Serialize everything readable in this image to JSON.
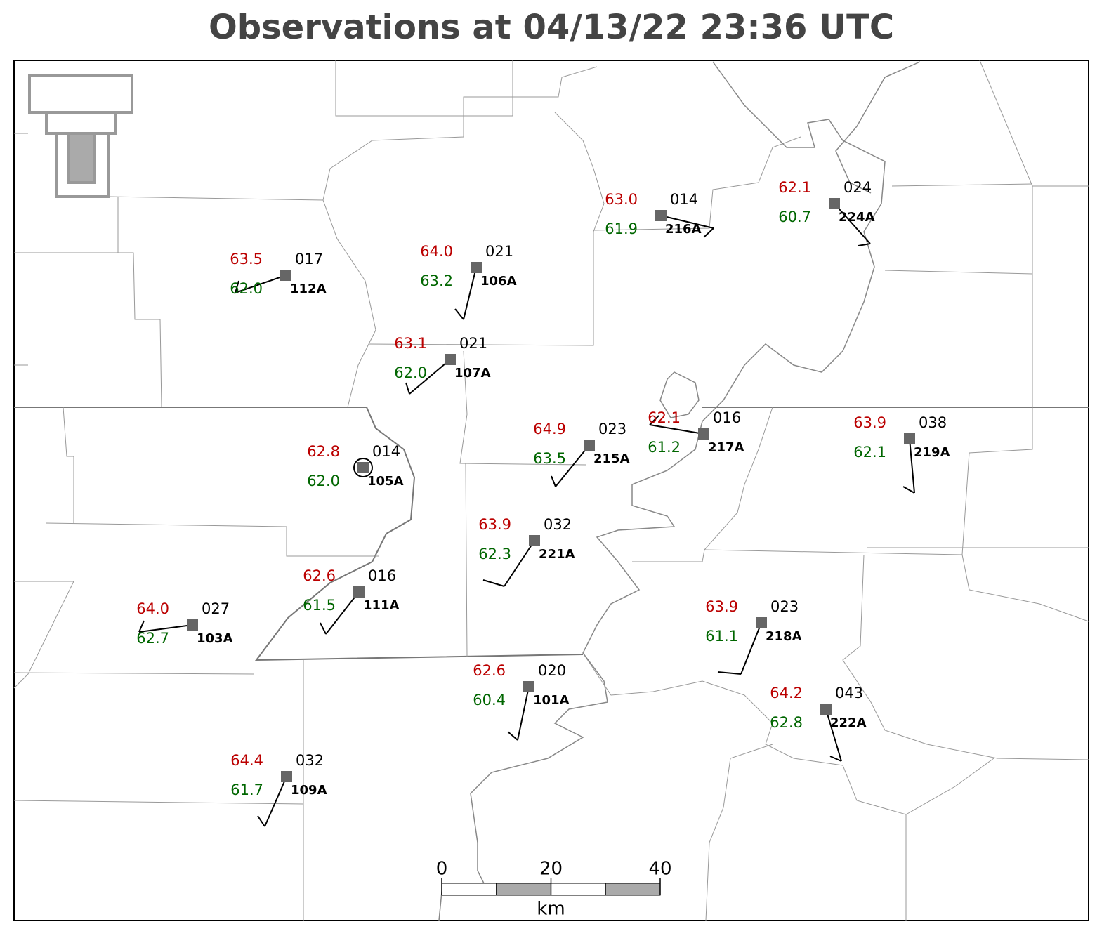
{
  "title": "Observations at 04/13/22 23:36 UTC",
  "stations": [
    {
      "id": "112A",
      "temperature": "63.5",
      "dewpoint": "62.0",
      "value": "017"
    },
    {
      "id": "106A",
      "temperature": "64.0",
      "dewpoint": "63.2",
      "value": "021"
    },
    {
      "id": "107A",
      "temperature": "63.1",
      "dewpoint": "62.0",
      "value": "021"
    },
    {
      "id": "216A",
      "temperature": "63.0",
      "dewpoint": "61.9",
      "value": "014"
    },
    {
      "id": "224A",
      "temperature": "62.1",
      "dewpoint": "60.7",
      "value": "024"
    },
    {
      "id": "105A",
      "temperature": "62.8",
      "dewpoint": "62.0",
      "value": "014"
    },
    {
      "id": "215A",
      "temperature": "64.9",
      "dewpoint": "63.5",
      "value": "023"
    },
    {
      "id": "217A",
      "temperature": "62.1",
      "dewpoint": "61.2",
      "value": "016"
    },
    {
      "id": "219A",
      "temperature": "63.9",
      "dewpoint": "62.1",
      "value": "038"
    },
    {
      "id": "221A",
      "temperature": "63.9",
      "dewpoint": "62.3",
      "value": "032"
    },
    {
      "id": "111A",
      "temperature": "62.6",
      "dewpoint": "61.5",
      "value": "016"
    },
    {
      "id": "103A",
      "temperature": "64.0",
      "dewpoint": "62.7",
      "value": "027"
    },
    {
      "id": "218A",
      "temperature": "63.9",
      "dewpoint": "61.1",
      "value": "023"
    },
    {
      "id": "101A",
      "temperature": "62.6",
      "dewpoint": "60.4",
      "value": "020"
    },
    {
      "id": "222A",
      "temperature": "64.2",
      "dewpoint": "62.8",
      "value": "043"
    },
    {
      "id": "109A",
      "temperature": "64.4",
      "dewpoint": "61.7",
      "value": "032"
    }
  ],
  "scale_bar": {
    "ticks": [
      0,
      20,
      40
    ],
    "unit": "km"
  }
}
